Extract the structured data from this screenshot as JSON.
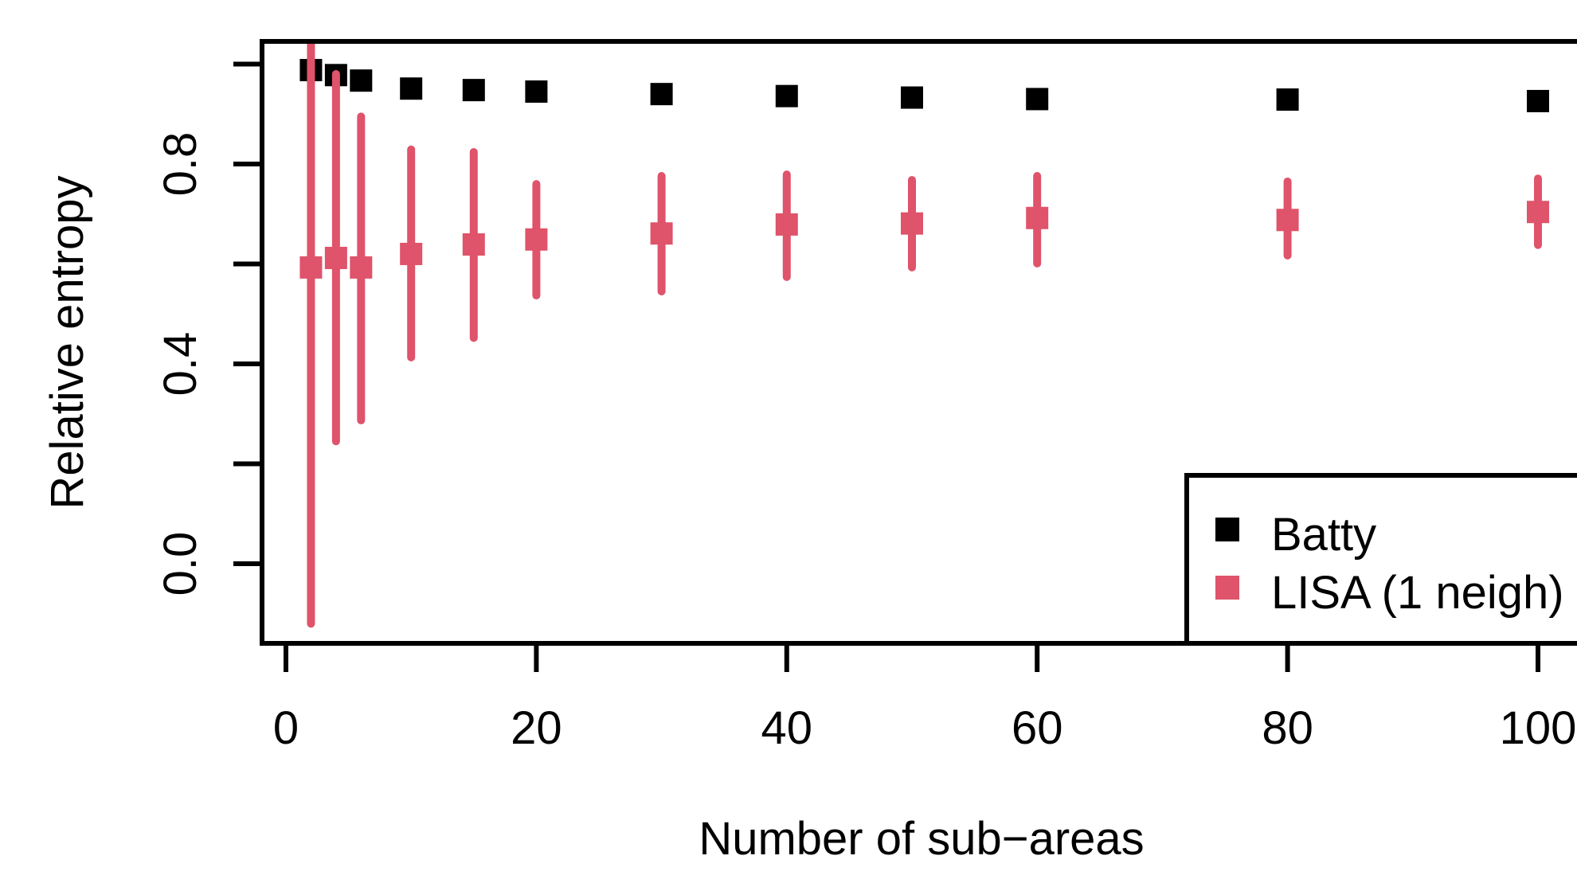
{
  "chart_data": {
    "type": "scatter",
    "title": "",
    "xlabel": "Number of sub−areas",
    "ylabel": "Relative entropy",
    "x": [
      2,
      4,
      6,
      10,
      15,
      20,
      30,
      40,
      50,
      60,
      80,
      100
    ],
    "xlim": [
      -2,
      104
    ],
    "ylim": [
      -0.156,
      1.04
    ],
    "xticks": [
      0,
      20,
      40,
      60,
      80,
      100
    ],
    "xtick_labels": [
      "0",
      "20",
      "40",
      "60",
      "80",
      "100"
    ],
    "yticks": [
      0.0,
      0.2,
      0.4,
      0.6,
      0.8,
      1.0
    ],
    "ytick_labels": [
      "0.0",
      "",
      "0.4",
      "",
      "0.8",
      ""
    ],
    "grid": false,
    "series": [
      {
        "name": "Batty",
        "color": "#000000",
        "marker": "square",
        "values": [
          0.988,
          0.978,
          0.967,
          0.951,
          0.948,
          0.945,
          0.94,
          0.936,
          0.933,
          0.93,
          0.929,
          0.926
        ]
      },
      {
        "name": "LISA (1 neigh)",
        "color": "#DF536B",
        "marker": "square",
        "values": [
          0.593,
          0.612,
          0.593,
          0.62,
          0.639,
          0.649,
          0.661,
          0.679,
          0.681,
          0.692,
          0.688,
          0.704
        ],
        "error_lower": [
          -0.12,
          0.245,
          0.287,
          0.413,
          0.452,
          0.537,
          0.545,
          0.574,
          0.593,
          0.601,
          0.617,
          0.638
        ],
        "error_upper": [
          1.04,
          0.98,
          0.895,
          0.829,
          0.824,
          0.76,
          0.776,
          0.779,
          0.768,
          0.776,
          0.765,
          0.771
        ]
      }
    ],
    "legend": {
      "position": "bottom-right",
      "entries": [
        {
          "label": "Batty",
          "color": "#000000",
          "swatch": "square"
        },
        {
          "label": "LISA (1 neigh)",
          "color": "#DF536B",
          "swatch": "square"
        }
      ]
    }
  },
  "colors": {
    "background": "#ffffff",
    "axis": "#000000",
    "series_batty": "#000000",
    "series_lisa": "#DF536B"
  }
}
